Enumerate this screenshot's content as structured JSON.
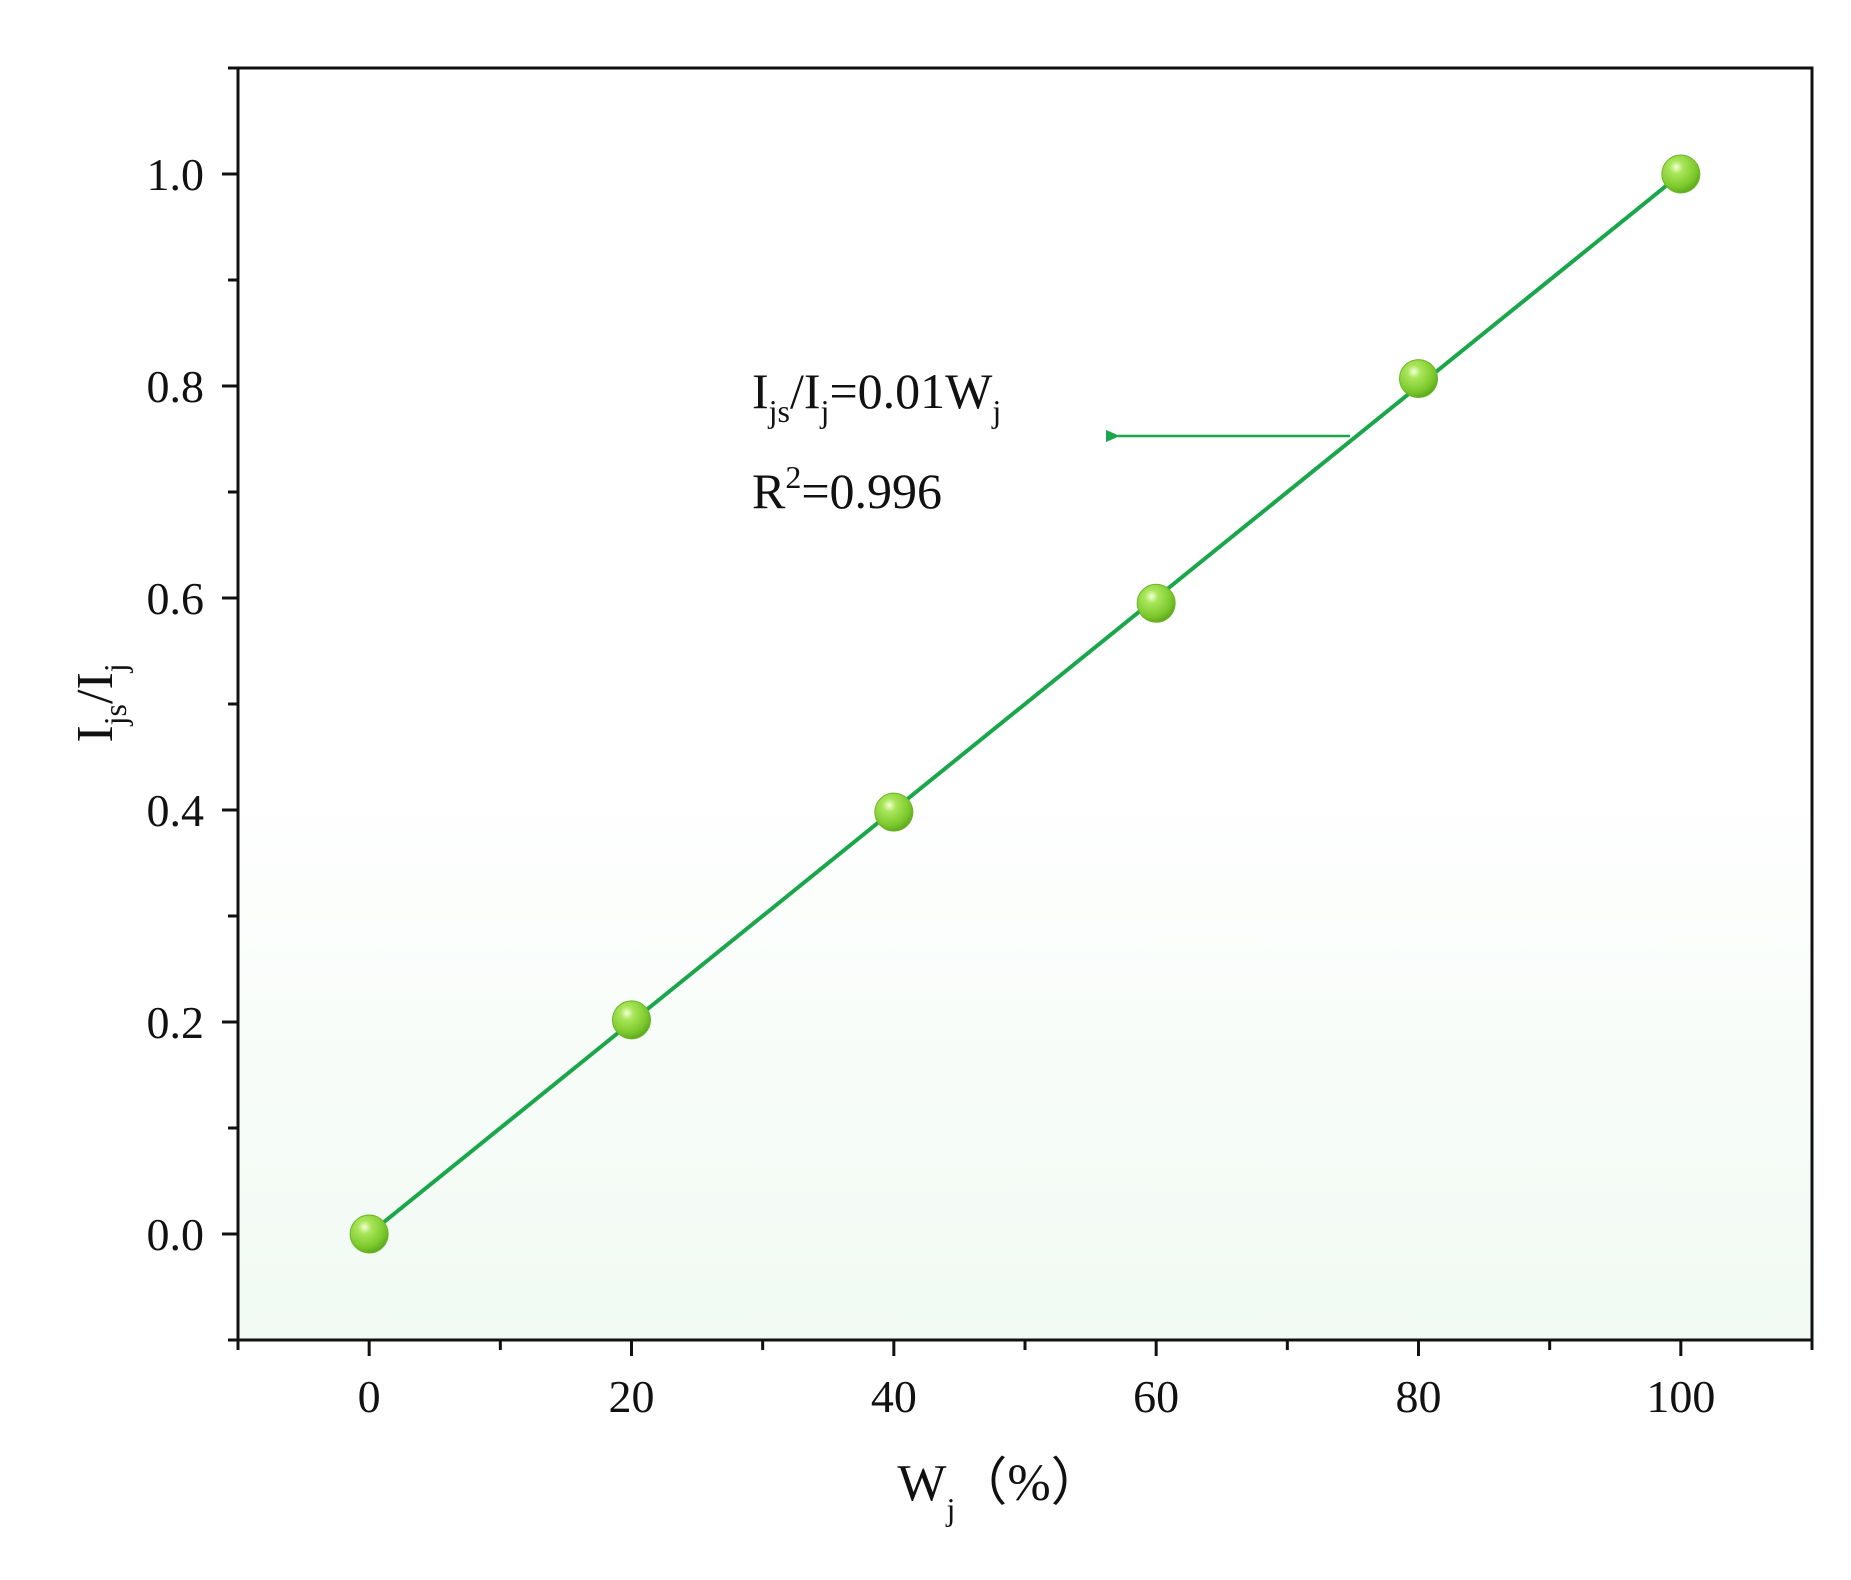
{
  "chart_data": {
    "type": "scatter",
    "title": "",
    "xlim": [
      -10,
      110
    ],
    "ylim": [
      -0.1,
      1.1
    ],
    "x_ticks": [
      0,
      20,
      40,
      60,
      80,
      100
    ],
    "x_tick_labels": [
      "0",
      "20",
      "40",
      "60",
      "80",
      "100"
    ],
    "y_ticks": [
      0.0,
      0.2,
      0.4,
      0.6,
      0.8,
      1.0
    ],
    "y_tick_labels": [
      "0.0",
      "0.2",
      "0.4",
      "0.6",
      "0.8",
      "1.0"
    ],
    "xlabel": {
      "main": "W",
      "sub": "j",
      "rest": "（%）"
    },
    "ylabel": {
      "p1": "I",
      "s1": "js",
      "p2": "/I",
      "s2": "j"
    },
    "series": [
      {
        "x": [
          0,
          20,
          40,
          60,
          80,
          100
        ],
        "y": [
          0.0,
          0.202,
          0.398,
          0.595,
          0.807,
          1.0
        ],
        "marker": "sphere",
        "color": "#8fd43c"
      }
    ],
    "fit": {
      "slope": 0.01,
      "intercept": 0,
      "x_range": [
        0,
        100
      ],
      "color": "#1aa64a",
      "equation": {
        "p1": "I",
        "s1": "js",
        "p2": "/I",
        "s2": "j",
        "p3": "=0.01W",
        "s3": "j"
      },
      "r2": {
        "p1": "R",
        "sup": "2",
        "p2": "=0.996"
      }
    },
    "grid": false,
    "legend": "none",
    "background_gradient": [
      "#ffffff",
      "#f1faf3"
    ],
    "axis_color": "#111111"
  }
}
